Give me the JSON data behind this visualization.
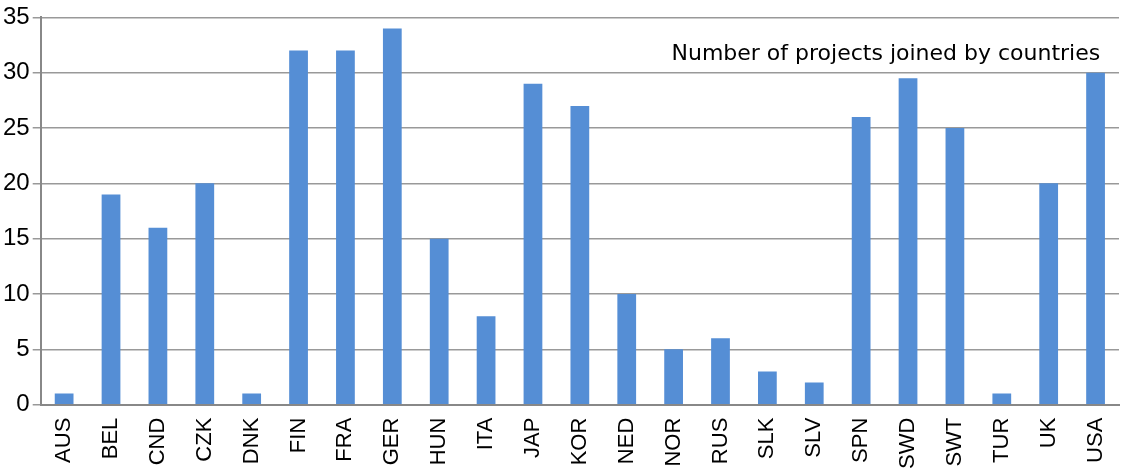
{
  "chart_data": {
    "type": "bar",
    "title": "Number of projects joined by countries",
    "categories": [
      "AUS",
      "BEL",
      "CND",
      "CZK",
      "DNK",
      "FIN",
      "FRA",
      "GER",
      "HUN",
      "ITA",
      "JAP",
      "KOR",
      "NED",
      "NOR",
      "RUS",
      "SLK",
      "SLV",
      "SPN",
      "SWD",
      "SWT",
      "TUR",
      "UK",
      "USA"
    ],
    "values": [
      1,
      19,
      16,
      20,
      1,
      32,
      32,
      34,
      15,
      8,
      29,
      27,
      10,
      5,
      6,
      3,
      2,
      26,
      29.5,
      25,
      1,
      20,
      30
    ],
    "color": "#558ed5",
    "ylim": [
      0,
      35
    ],
    "yticks": [
      0,
      5,
      10,
      15,
      20,
      25,
      30,
      35
    ],
    "grid": "y",
    "legend": false
  }
}
